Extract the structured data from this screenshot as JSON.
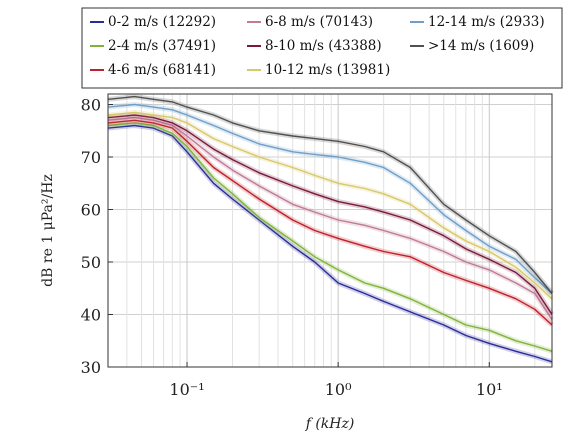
{
  "chart_data": {
    "type": "line",
    "title": "",
    "xlabel": "f (kHz)",
    "ylabel": "dB re 1 μPa²/Hz",
    "xscale": "log",
    "xlim": [
      0.03,
      26
    ],
    "ylim": [
      30,
      82
    ],
    "x_ticks": [
      {
        "value": 0.1,
        "label": "10⁻¹"
      },
      {
        "value": 1,
        "label": "10⁰"
      },
      {
        "value": 10,
        "label": "10¹"
      }
    ],
    "y_ticks": [
      30,
      40,
      50,
      60,
      70,
      80
    ],
    "grid": true,
    "legend_position": "top",
    "x": [
      0.03,
      0.045,
      0.06,
      0.08,
      0.1,
      0.15,
      0.2,
      0.3,
      0.5,
      0.7,
      1.0,
      1.5,
      2.0,
      3.0,
      5.0,
      7.0,
      10.0,
      15.0,
      20.0,
      26.0
    ],
    "series": [
      {
        "name": "0-2 m/s (12292)",
        "color": "#2b2b9a",
        "values": [
          75.5,
          76,
          75.5,
          74,
          71,
          65,
          62,
          58,
          53,
          50,
          46,
          44,
          42.5,
          40.5,
          38,
          36,
          34.5,
          33,
          32,
          31
        ]
      },
      {
        "name": "2-4 m/s (37491)",
        "color": "#7fb33a",
        "values": [
          76,
          76.5,
          76,
          74.5,
          72,
          66,
          63,
          58.5,
          54,
          51,
          48.5,
          46,
          45,
          43,
          40,
          38,
          37,
          35,
          34,
          33
        ]
      },
      {
        "name": "4-6 m/s (68141)",
        "color": "#c0202a",
        "values": [
          76.5,
          77,
          76.5,
          75.5,
          73,
          68,
          65.5,
          62,
          58,
          56,
          54.5,
          53,
          52,
          51,
          48,
          46.5,
          45,
          43,
          41,
          38
        ]
      },
      {
        "name": "6-8 m/s (70143)",
        "color": "#c07a96",
        "values": [
          77,
          77.5,
          77,
          76,
          74,
          70,
          67.5,
          64.5,
          61,
          59.5,
          58,
          57,
          56,
          54.5,
          52,
          50,
          48.5,
          46,
          44,
          39
        ]
      },
      {
        "name": "8-10 m/s (43388)",
        "color": "#7a1a3a",
        "values": [
          77.5,
          78,
          77.5,
          76.5,
          75,
          71.5,
          69.5,
          67,
          64.5,
          63,
          61.5,
          60.5,
          59.5,
          58,
          55,
          52.5,
          50.5,
          48,
          45,
          40
        ]
      },
      {
        "name": "10-12 m/s (13981)",
        "color": "#d8c86a",
        "values": [
          78,
          78.5,
          78,
          77.5,
          76.5,
          73.5,
          72,
          70,
          68,
          66.5,
          65,
          64,
          63,
          61,
          56.5,
          54,
          52,
          49,
          46,
          43
        ]
      },
      {
        "name": "12-14 m/s (2933)",
        "color": "#6f9fc8",
        "values": [
          79.5,
          80,
          79.5,
          79,
          78,
          76,
          74.5,
          72.5,
          71,
          70.5,
          70,
          69,
          68,
          65,
          59,
          56,
          53,
          50.5,
          47,
          44
        ]
      },
      {
        "name": ">14 m/s (1609)",
        "color": "#505050",
        "values": [
          81,
          81.5,
          81,
          80.5,
          79.5,
          78,
          76.5,
          75,
          74,
          73.5,
          73,
          72,
          71,
          68,
          61,
          58,
          55,
          52,
          48,
          44
        ]
      }
    ]
  }
}
